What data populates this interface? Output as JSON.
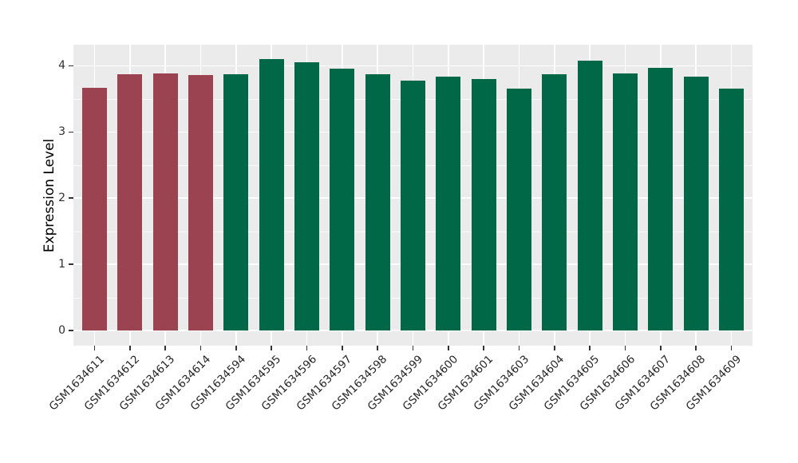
{
  "figure": {
    "background_color": "#FFFFFF",
    "panel_background_color": "#EBEBEB",
    "grid_major_color": "#FFFFFF",
    "grid_minor_color": "#FFFFFF",
    "tick_color": "#333333",
    "axis_text_color": "#303030",
    "bar_color_group_a": "#9C4351",
    "bar_color_group_b": "#006847"
  },
  "chart_data": {
    "type": "bar",
    "title": "",
    "xlabel": "",
    "ylabel": "Expression Level",
    "ylim": [
      -0.23,
      4.32
    ],
    "yticks": [
      0,
      1,
      2,
      3,
      4
    ],
    "yticks_minor": [
      0.5,
      1.5,
      2.5,
      3.5
    ],
    "grid": true,
    "legend_position": "none",
    "x_tick_rotation_deg": 45,
    "categories": [
      "GSM1634611",
      "GSM1634612",
      "GSM1634613",
      "GSM1634614",
      "GSM1634594",
      "GSM1634595",
      "GSM1634596",
      "GSM1634597",
      "GSM1634598",
      "GSM1634599",
      "GSM1634600",
      "GSM1634601",
      "GSM1634603",
      "GSM1634604",
      "GSM1634605",
      "GSM1634606",
      "GSM1634607",
      "GSM1634608",
      "GSM1634609"
    ],
    "series": [
      {
        "name": "Expression Level",
        "values": [
          3.67,
          3.87,
          3.88,
          3.86,
          3.87,
          4.1,
          4.05,
          3.96,
          3.87,
          3.78,
          3.83,
          3.8,
          3.66,
          3.87,
          4.08,
          3.88,
          3.97,
          3.83,
          3.66
        ]
      }
    ],
    "bar_colors": [
      "#9C4351",
      "#9C4351",
      "#9C4351",
      "#9C4351",
      "#006847",
      "#006847",
      "#006847",
      "#006847",
      "#006847",
      "#006847",
      "#006847",
      "#006847",
      "#006847",
      "#006847",
      "#006847",
      "#006847",
      "#006847",
      "#006847",
      "#006847"
    ]
  }
}
